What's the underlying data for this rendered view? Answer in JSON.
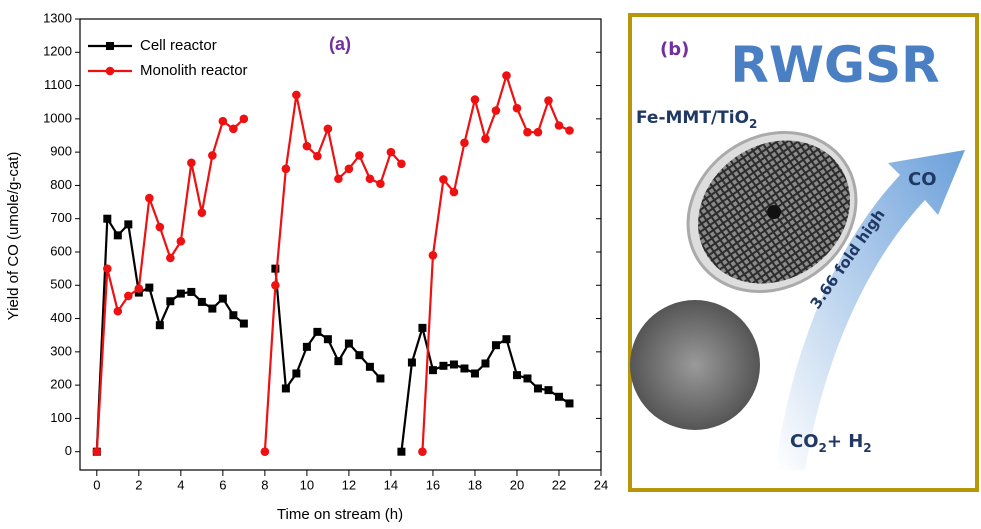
{
  "chart_data": {
    "type": "line",
    "annotation": "(a)",
    "x_label": "Time on stream (h)",
    "y_label": "Yield of CO (umole/g-cat)",
    "legend": "top-left",
    "xlim": [
      -0.8,
      24
    ],
    "xticks": [
      0,
      2,
      4,
      6,
      8,
      10,
      12,
      14,
      16,
      18,
      20,
      22,
      24
    ],
    "ylim": [
      -55,
      1300
    ],
    "yticks": [
      0,
      100,
      200,
      300,
      400,
      500,
      600,
      700,
      800,
      900,
      1000,
      1100,
      1200,
      1300
    ],
    "x": [
      0,
      0.5,
      1,
      1.5,
      2,
      2.5,
      3,
      3.5,
      4,
      4.5,
      5,
      5.5,
      6,
      6.5,
      7,
      7.5,
      8,
      8.5,
      9,
      9.5,
      10,
      10.5,
      11,
      11.5,
      12,
      12.5,
      13,
      13.5,
      14,
      14.5,
      15,
      15.5,
      16,
      16.5,
      17,
      17.5,
      18,
      18.5,
      19,
      19.5,
      20,
      20.5,
      21,
      21.5,
      22,
      22.5
    ],
    "series": [
      {
        "name": "Cell reactor",
        "color": "#000000",
        "marker": "square",
        "values": [
          0,
          700,
          650,
          683,
          478,
          493,
          380,
          452,
          475,
          480,
          450,
          430,
          460,
          410,
          385,
          null,
          null,
          550,
          190,
          235,
          315,
          360,
          338,
          272,
          325,
          290,
          255,
          220,
          null,
          0,
          268,
          372,
          245,
          258,
          262,
          250,
          235,
          265,
          320,
          338,
          230,
          220,
          190,
          185,
          165,
          145
        ]
      },
      {
        "name": "Monolith reactor",
        "color": "#ee1111",
        "marker": "circle",
        "values": [
          0,
          550,
          422,
          468,
          490,
          762,
          675,
          582,
          632,
          868,
          718,
          890,
          993,
          970,
          1000,
          null,
          0,
          500,
          850,
          1072,
          918,
          888,
          970,
          820,
          850,
          890,
          820,
          805,
          900,
          865,
          null,
          0,
          590,
          818,
          780,
          928,
          1058,
          940,
          1025,
          1130,
          1032,
          960,
          960,
          1055,
          980,
          965
        ]
      }
    ]
  },
  "panel_b": {
    "label": "(b)",
    "title": "RWGSR",
    "catalyst": [
      "Fe-MMT/TiO",
      "2"
    ],
    "product": "CO",
    "arrow_text": "3.66 fold high",
    "reactants": [
      "CO",
      "2",
      "+ H",
      "2"
    ]
  }
}
